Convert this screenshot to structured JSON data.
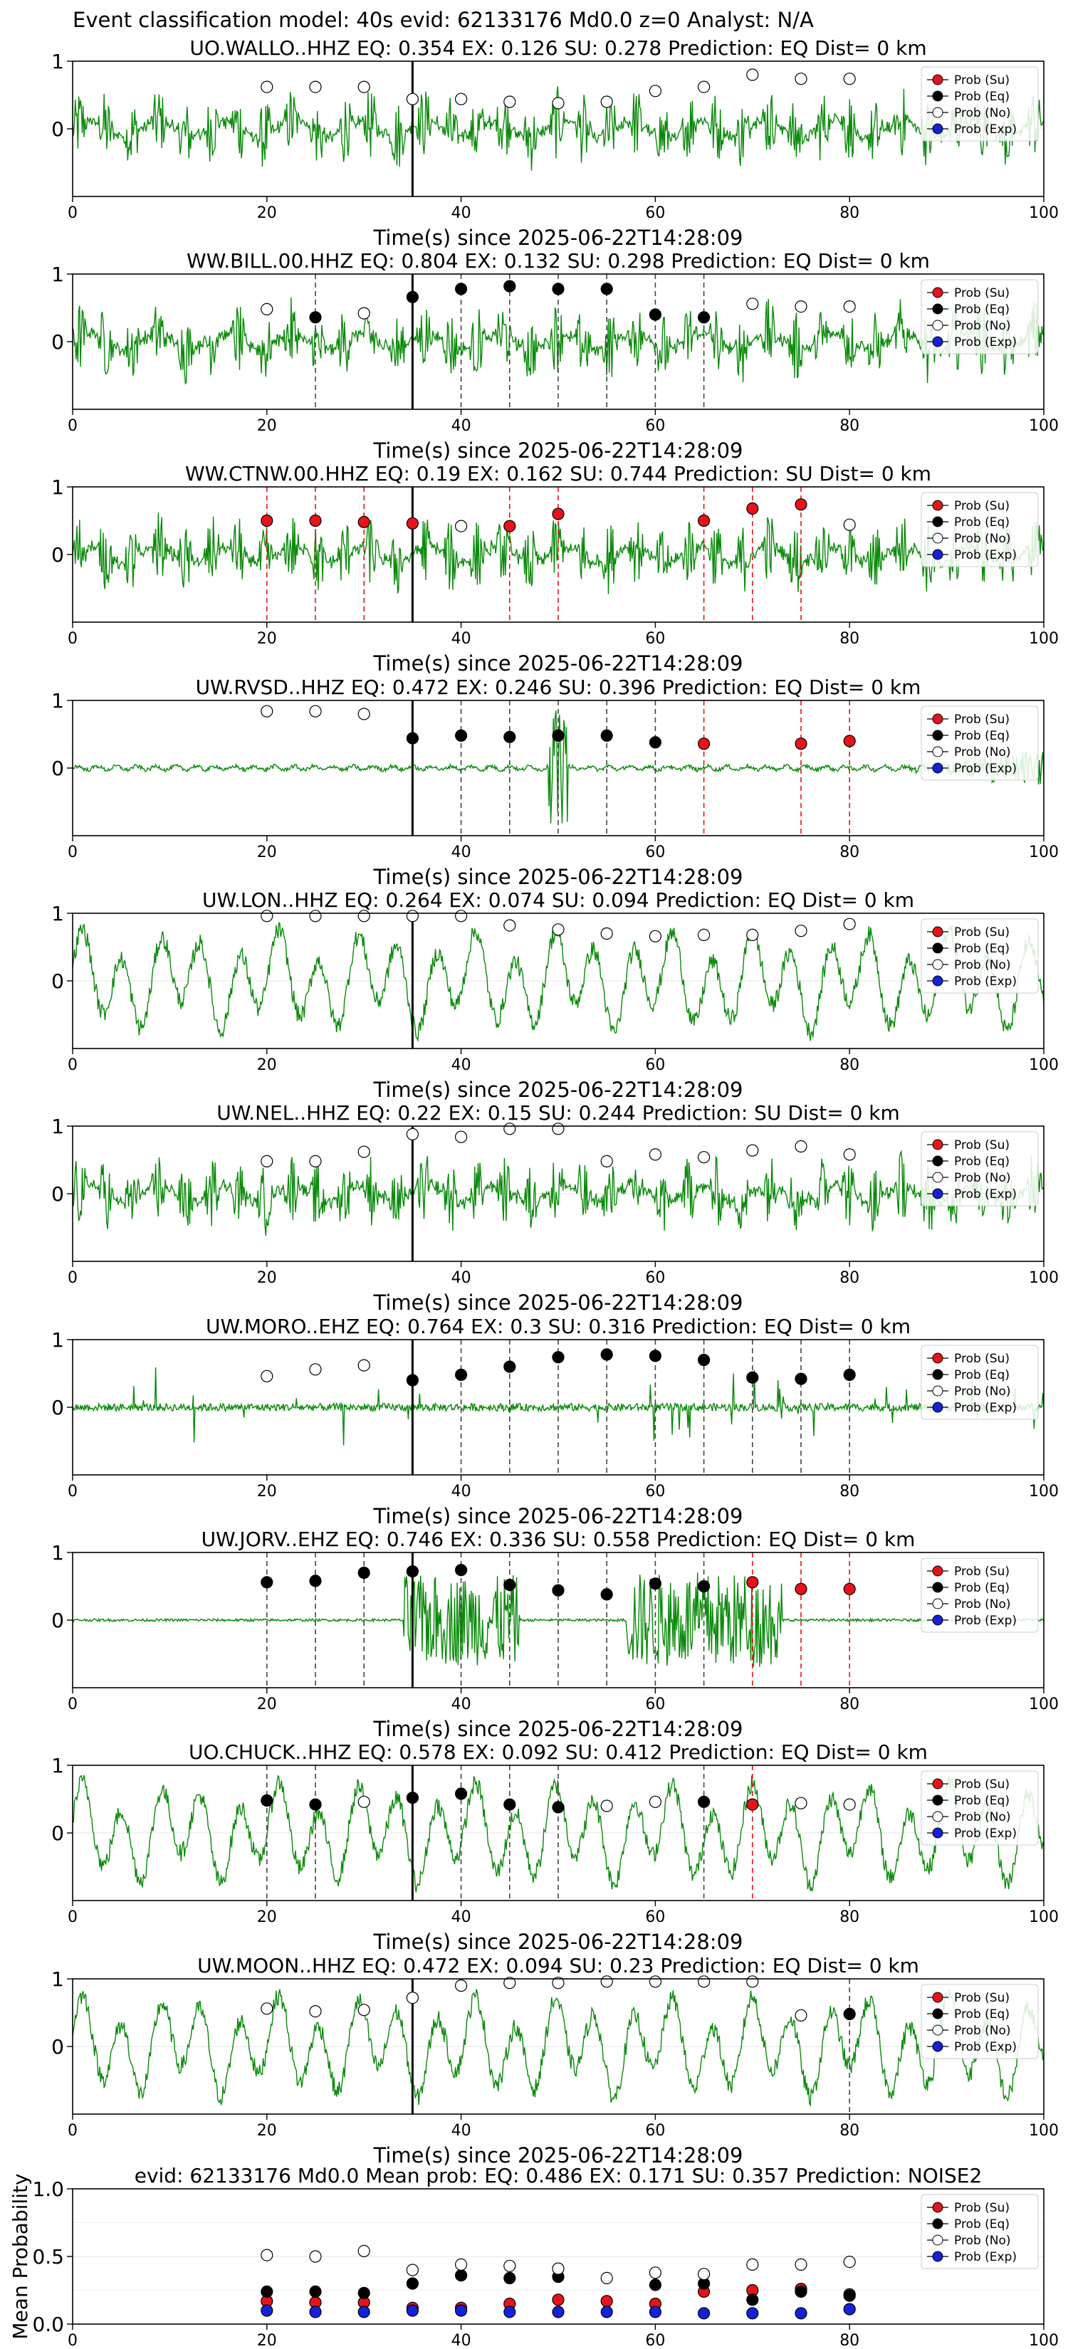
{
  "figure": {
    "title": "Event classification model: 40s evid: 62133176 Md0.0 z=0 Analyst: N/A"
  },
  "legend_items": [
    "Prob (Su)",
    "Prob (Eq)",
    "Prob (No)",
    "Prob (Exp)"
  ],
  "colors": {
    "su": "#e8131a",
    "eq": "#000000",
    "no": "#ffffff",
    "exp": "#1521d8",
    "waveform": "#0a8a0a",
    "su_line": "#e8131a",
    "eq_line": "#444444"
  },
  "chart_data": [
    {
      "type": "line",
      "station": "UO.WALLO..HHZ",
      "title": "UO.WALLO..HHZ   EQ: 0.354  EX: 0.126  SU: 0.278   Prediction: EQ    Dist= 0 km",
      "xlabel": "Time(s) since 2025-06-22T14:28:09",
      "xlim": [
        0,
        100
      ],
      "ylim": [
        -1,
        1
      ],
      "xticks": [
        0,
        20,
        40,
        60,
        80,
        100
      ],
      "yticks": [
        1,
        0
      ],
      "waveform_style": "noisy",
      "pick_time": 35,
      "markers": [
        {
          "t": 20,
          "p": 0.62,
          "cls": "no"
        },
        {
          "t": 25,
          "p": 0.62,
          "cls": "no"
        },
        {
          "t": 30,
          "p": 0.62,
          "cls": "no"
        },
        {
          "t": 35,
          "p": 0.44,
          "cls": "no"
        },
        {
          "t": 40,
          "p": 0.44,
          "cls": "no"
        },
        {
          "t": 45,
          "p": 0.4,
          "cls": "no"
        },
        {
          "t": 50,
          "p": 0.38,
          "cls": "no"
        },
        {
          "t": 55,
          "p": 0.4,
          "cls": "no"
        },
        {
          "t": 60,
          "p": 0.56,
          "cls": "no"
        },
        {
          "t": 65,
          "p": 0.62,
          "cls": "no"
        },
        {
          "t": 70,
          "p": 0.8,
          "cls": "no"
        },
        {
          "t": 75,
          "p": 0.74,
          "cls": "no"
        },
        {
          "t": 80,
          "p": 0.74,
          "cls": "no"
        }
      ]
    },
    {
      "type": "line",
      "station": "WW.BILL.00.HHZ",
      "title": "WW.BILL.00.HHZ   EQ: 0.804  EX: 0.132  SU: 0.298   Prediction: EQ    Dist= 0 km",
      "xlabel": "Time(s) since 2025-06-22T14:28:09",
      "xlim": [
        0,
        100
      ],
      "ylim": [
        -1,
        1
      ],
      "xticks": [
        0,
        20,
        40,
        60,
        80,
        100
      ],
      "yticks": [
        1,
        0
      ],
      "waveform_style": "noisy",
      "pick_time": 35,
      "markers": [
        {
          "t": 20,
          "p": 0.48,
          "cls": "no"
        },
        {
          "t": 25,
          "p": 0.36,
          "cls": "eq"
        },
        {
          "t": 30,
          "p": 0.42,
          "cls": "no"
        },
        {
          "t": 35,
          "p": 0.66,
          "cls": "eq"
        },
        {
          "t": 40,
          "p": 0.78,
          "cls": "eq"
        },
        {
          "t": 45,
          "p": 0.82,
          "cls": "eq"
        },
        {
          "t": 50,
          "p": 0.78,
          "cls": "eq"
        },
        {
          "t": 55,
          "p": 0.78,
          "cls": "eq"
        },
        {
          "t": 60,
          "p": 0.4,
          "cls": "eq"
        },
        {
          "t": 65,
          "p": 0.36,
          "cls": "eq"
        },
        {
          "t": 70,
          "p": 0.56,
          "cls": "no"
        },
        {
          "t": 75,
          "p": 0.52,
          "cls": "no"
        },
        {
          "t": 80,
          "p": 0.52,
          "cls": "no"
        }
      ]
    },
    {
      "type": "line",
      "station": "WW.CTNW.00.HHZ",
      "title": "WW.CTNW.00.HHZ   EQ: 0.19  EX: 0.162  SU: 0.744   Prediction: SU    Dist= 0 km",
      "xlabel": "Time(s) since 2025-06-22T14:28:09",
      "xlim": [
        0,
        100
      ],
      "ylim": [
        -1,
        1
      ],
      "xticks": [
        0,
        20,
        40,
        60,
        80,
        100
      ],
      "yticks": [
        1,
        0
      ],
      "waveform_style": "noisy",
      "pick_time": 35,
      "markers": [
        {
          "t": 20,
          "p": 0.5,
          "cls": "su"
        },
        {
          "t": 25,
          "p": 0.5,
          "cls": "su"
        },
        {
          "t": 30,
          "p": 0.48,
          "cls": "su"
        },
        {
          "t": 35,
          "p": 0.46,
          "cls": "su"
        },
        {
          "t": 40,
          "p": 0.42,
          "cls": "no"
        },
        {
          "t": 45,
          "p": 0.42,
          "cls": "su"
        },
        {
          "t": 50,
          "p": 0.6,
          "cls": "su"
        },
        {
          "t": 55,
          "p": 0.0,
          "cls": "none"
        },
        {
          "t": 60,
          "p": 0.0,
          "cls": "none"
        },
        {
          "t": 65,
          "p": 0.5,
          "cls": "su"
        },
        {
          "t": 70,
          "p": 0.68,
          "cls": "su"
        },
        {
          "t": 75,
          "p": 0.74,
          "cls": "su"
        },
        {
          "t": 80,
          "p": 0.44,
          "cls": "no"
        }
      ]
    },
    {
      "type": "line",
      "station": "UW.RVSD..HHZ",
      "title": "UW.RVSD..HHZ   EQ: 0.472  EX: 0.246  SU: 0.396   Prediction: EQ    Dist= 0 km",
      "xlabel": "Time(s) since 2025-06-22T14:28:09",
      "xlim": [
        0,
        100
      ],
      "ylim": [
        -1,
        1
      ],
      "xticks": [
        0,
        20,
        40,
        60,
        80,
        100
      ],
      "yticks": [
        1,
        0
      ],
      "waveform_style": "quiet",
      "pick_time": 35,
      "markers": [
        {
          "t": 20,
          "p": 0.84,
          "cls": "no"
        },
        {
          "t": 25,
          "p": 0.84,
          "cls": "no"
        },
        {
          "t": 30,
          "p": 0.8,
          "cls": "no"
        },
        {
          "t": 35,
          "p": 0.44,
          "cls": "eq"
        },
        {
          "t": 40,
          "p": 0.48,
          "cls": "eq"
        },
        {
          "t": 45,
          "p": 0.46,
          "cls": "eq"
        },
        {
          "t": 50,
          "p": 0.48,
          "cls": "eq"
        },
        {
          "t": 55,
          "p": 0.48,
          "cls": "eq"
        },
        {
          "t": 60,
          "p": 0.38,
          "cls": "eq"
        },
        {
          "t": 65,
          "p": 0.36,
          "cls": "su"
        },
        {
          "t": 70,
          "p": 0.0,
          "cls": "none"
        },
        {
          "t": 75,
          "p": 0.36,
          "cls": "su"
        },
        {
          "t": 80,
          "p": 0.4,
          "cls": "su"
        }
      ]
    },
    {
      "type": "line",
      "station": "UW.LON..HHZ",
      "title": "UW.LON..HHZ   EQ: 0.264  EX: 0.074  SU: 0.094   Prediction: EQ    Dist= 0 km",
      "xlabel": "Time(s) since 2025-06-22T14:28:09",
      "xlim": [
        0,
        100
      ],
      "ylim": [
        -1,
        1
      ],
      "xticks": [
        0,
        20,
        40,
        60,
        80,
        100
      ],
      "yticks": [
        1,
        0
      ],
      "waveform_style": "wavy",
      "pick_time": 35,
      "markers": [
        {
          "t": 20,
          "p": 0.96,
          "cls": "no"
        },
        {
          "t": 25,
          "p": 0.96,
          "cls": "no"
        },
        {
          "t": 30,
          "p": 0.96,
          "cls": "no"
        },
        {
          "t": 35,
          "p": 0.96,
          "cls": "no"
        },
        {
          "t": 40,
          "p": 0.96,
          "cls": "no"
        },
        {
          "t": 45,
          "p": 0.82,
          "cls": "no"
        },
        {
          "t": 50,
          "p": 0.76,
          "cls": "no"
        },
        {
          "t": 55,
          "p": 0.7,
          "cls": "no"
        },
        {
          "t": 60,
          "p": 0.66,
          "cls": "no"
        },
        {
          "t": 65,
          "p": 0.68,
          "cls": "no"
        },
        {
          "t": 70,
          "p": 0.68,
          "cls": "no"
        },
        {
          "t": 75,
          "p": 0.74,
          "cls": "no"
        },
        {
          "t": 80,
          "p": 0.84,
          "cls": "no"
        }
      ]
    },
    {
      "type": "line",
      "station": "UW.NEL..HHZ",
      "title": "UW.NEL..HHZ   EQ: 0.22  EX: 0.15  SU: 0.244   Prediction: SU    Dist= 0 km",
      "xlabel": "Time(s) since 2025-06-22T14:28:09",
      "xlim": [
        0,
        100
      ],
      "ylim": [
        -1,
        1
      ],
      "xticks": [
        0,
        20,
        40,
        60,
        80,
        100
      ],
      "yticks": [
        1,
        0
      ],
      "waveform_style": "noisy",
      "pick_time": 35,
      "markers": [
        {
          "t": 20,
          "p": 0.48,
          "cls": "no"
        },
        {
          "t": 25,
          "p": 0.48,
          "cls": "no"
        },
        {
          "t": 30,
          "p": 0.62,
          "cls": "no"
        },
        {
          "t": 35,
          "p": 0.88,
          "cls": "no"
        },
        {
          "t": 40,
          "p": 0.84,
          "cls": "no"
        },
        {
          "t": 45,
          "p": 0.96,
          "cls": "no"
        },
        {
          "t": 50,
          "p": 0.96,
          "cls": "no"
        },
        {
          "t": 55,
          "p": 0.48,
          "cls": "no"
        },
        {
          "t": 60,
          "p": 0.58,
          "cls": "no"
        },
        {
          "t": 65,
          "p": 0.54,
          "cls": "no"
        },
        {
          "t": 70,
          "p": 0.64,
          "cls": "no"
        },
        {
          "t": 75,
          "p": 0.7,
          "cls": "no"
        },
        {
          "t": 80,
          "p": 0.58,
          "cls": "no"
        }
      ]
    },
    {
      "type": "line",
      "station": "UW.MORO..EHZ",
      "title": "UW.MORO..EHZ   EQ: 0.764  EX: 0.3  SU: 0.316   Prediction: EQ    Dist= 0 km",
      "xlabel": "Time(s) since 2025-06-22T14:28:09",
      "xlim": [
        0,
        100
      ],
      "ylim": [
        -1,
        1
      ],
      "xticks": [
        0,
        20,
        40,
        60,
        80,
        100
      ],
      "yticks": [
        1,
        0
      ],
      "waveform_style": "spiky",
      "pick_time": 35,
      "markers": [
        {
          "t": 20,
          "p": 0.46,
          "cls": "no"
        },
        {
          "t": 25,
          "p": 0.56,
          "cls": "no"
        },
        {
          "t": 30,
          "p": 0.62,
          "cls": "no"
        },
        {
          "t": 35,
          "p": 0.4,
          "cls": "eq"
        },
        {
          "t": 40,
          "p": 0.48,
          "cls": "eq"
        },
        {
          "t": 45,
          "p": 0.6,
          "cls": "eq"
        },
        {
          "t": 50,
          "p": 0.74,
          "cls": "eq"
        },
        {
          "t": 55,
          "p": 0.78,
          "cls": "eq"
        },
        {
          "t": 60,
          "p": 0.76,
          "cls": "eq"
        },
        {
          "t": 65,
          "p": 0.7,
          "cls": "eq"
        },
        {
          "t": 70,
          "p": 0.44,
          "cls": "eq"
        },
        {
          "t": 75,
          "p": 0.42,
          "cls": "eq"
        },
        {
          "t": 80,
          "p": 0.48,
          "cls": "eq"
        }
      ]
    },
    {
      "type": "line",
      "station": "UW.JORV..EHZ",
      "title": "UW.JORV..EHZ   EQ: 0.746  EX: 0.336  SU: 0.558   Prediction: EQ    Dist= 0 km",
      "xlabel": "Time(s) since 2025-06-22T14:28:09",
      "xlim": [
        0,
        100
      ],
      "ylim": [
        -1,
        1
      ],
      "xticks": [
        0,
        20,
        40,
        60,
        80,
        100
      ],
      "yticks": [
        1,
        0
      ],
      "waveform_style": "burst",
      "pick_time": 35,
      "markers": [
        {
          "t": 20,
          "p": 0.56,
          "cls": "eq"
        },
        {
          "t": 25,
          "p": 0.58,
          "cls": "eq"
        },
        {
          "t": 30,
          "p": 0.7,
          "cls": "eq"
        },
        {
          "t": 35,
          "p": 0.72,
          "cls": "eq"
        },
        {
          "t": 40,
          "p": 0.74,
          "cls": "eq"
        },
        {
          "t": 45,
          "p": 0.52,
          "cls": "eq"
        },
        {
          "t": 50,
          "p": 0.44,
          "cls": "eq"
        },
        {
          "t": 55,
          "p": 0.38,
          "cls": "eq"
        },
        {
          "t": 60,
          "p": 0.54,
          "cls": "eq"
        },
        {
          "t": 65,
          "p": 0.5,
          "cls": "eq"
        },
        {
          "t": 70,
          "p": 0.56,
          "cls": "su"
        },
        {
          "t": 75,
          "p": 0.46,
          "cls": "su"
        },
        {
          "t": 80,
          "p": 0.46,
          "cls": "su"
        }
      ]
    },
    {
      "type": "line",
      "station": "UO.CHUCK..HHZ",
      "title": "UO.CHUCK..HHZ   EQ: 0.578  EX: 0.092  SU: 0.412   Prediction: EQ    Dist= 0 km",
      "xlabel": "Time(s) since 2025-06-22T14:28:09",
      "xlim": [
        0,
        100
      ],
      "ylim": [
        -1,
        1
      ],
      "xticks": [
        0,
        20,
        40,
        60,
        80,
        100
      ],
      "yticks": [
        1,
        0
      ],
      "waveform_style": "wavy",
      "pick_time": 35,
      "markers": [
        {
          "t": 20,
          "p": 0.48,
          "cls": "eq"
        },
        {
          "t": 25,
          "p": 0.42,
          "cls": "eq"
        },
        {
          "t": 30,
          "p": 0.46,
          "cls": "no"
        },
        {
          "t": 35,
          "p": 0.52,
          "cls": "eq"
        },
        {
          "t": 40,
          "p": 0.58,
          "cls": "eq"
        },
        {
          "t": 45,
          "p": 0.42,
          "cls": "eq"
        },
        {
          "t": 50,
          "p": 0.38,
          "cls": "eq"
        },
        {
          "t": 55,
          "p": 0.4,
          "cls": "no"
        },
        {
          "t": 60,
          "p": 0.46,
          "cls": "no"
        },
        {
          "t": 65,
          "p": 0.46,
          "cls": "eq"
        },
        {
          "t": 70,
          "p": 0.42,
          "cls": "su"
        },
        {
          "t": 75,
          "p": 0.44,
          "cls": "no"
        },
        {
          "t": 80,
          "p": 0.42,
          "cls": "no"
        }
      ]
    },
    {
      "type": "line",
      "station": "UW.MOON..HHZ",
      "title": "UW.MOON..HHZ   EQ: 0.472  EX: 0.094  SU: 0.23   Prediction: EQ    Dist= 0 km",
      "xlabel": "Time(s) since 2025-06-22T14:28:09",
      "xlim": [
        0,
        100
      ],
      "ylim": [
        -1,
        1
      ],
      "xticks": [
        0,
        20,
        40,
        60,
        80,
        100
      ],
      "yticks": [
        1,
        0
      ],
      "waveform_style": "wavy",
      "pick_time": 35,
      "markers": [
        {
          "t": 20,
          "p": 0.56,
          "cls": "no"
        },
        {
          "t": 25,
          "p": 0.52,
          "cls": "no"
        },
        {
          "t": 30,
          "p": 0.54,
          "cls": "no"
        },
        {
          "t": 35,
          "p": 0.72,
          "cls": "no"
        },
        {
          "t": 40,
          "p": 0.9,
          "cls": "no"
        },
        {
          "t": 45,
          "p": 0.94,
          "cls": "no"
        },
        {
          "t": 50,
          "p": 0.94,
          "cls": "no"
        },
        {
          "t": 55,
          "p": 0.96,
          "cls": "no"
        },
        {
          "t": 60,
          "p": 0.96,
          "cls": "no"
        },
        {
          "t": 65,
          "p": 0.96,
          "cls": "no"
        },
        {
          "t": 70,
          "p": 0.96,
          "cls": "no"
        },
        {
          "t": 75,
          "p": 0.46,
          "cls": "no"
        },
        {
          "t": 80,
          "p": 0.48,
          "cls": "eq"
        }
      ]
    },
    {
      "type": "scatter",
      "station": "mean",
      "title": "evid: 62133176  Md0.0   Mean prob:   EQ: 0.486  EX: 0.171  SU: 0.357   Prediction: NOISE2",
      "ylabel": "Mean Probability",
      "xlim": [
        0,
        100
      ],
      "ylim": [
        0,
        1
      ],
      "xticks": [
        0,
        20,
        40,
        60,
        80,
        100
      ],
      "yticks": [
        1.0,
        0.5,
        0.0
      ],
      "x": [
        20,
        25,
        30,
        35,
        40,
        45,
        50,
        55,
        60,
        65,
        70,
        75,
        80
      ],
      "series": [
        {
          "name": "Prob (Su)",
          "cls": "su",
          "values": [
            0.17,
            0.16,
            0.16,
            0.12,
            0.12,
            0.15,
            0.18,
            0.17,
            0.15,
            0.24,
            0.25,
            0.26,
            0.22
          ]
        },
        {
          "name": "Prob (Eq)",
          "cls": "eq",
          "values": [
            0.24,
            0.24,
            0.23,
            0.3,
            0.36,
            0.34,
            0.35,
            0.0,
            0.29,
            0.3,
            0.18,
            0.24,
            0.21
          ]
        },
        {
          "name": "Prob (No)",
          "cls": "no",
          "values": [
            0.51,
            0.5,
            0.54,
            0.4,
            0.44,
            0.43,
            0.41,
            0.34,
            0.38,
            0.37,
            0.44,
            0.44,
            0.46
          ]
        },
        {
          "name": "Prob (Exp)",
          "cls": "exp",
          "values": [
            0.1,
            0.09,
            0.09,
            0.1,
            0.1,
            0.09,
            0.09,
            0.09,
            0.09,
            0.08,
            0.08,
            0.08,
            0.11
          ]
        }
      ]
    }
  ]
}
